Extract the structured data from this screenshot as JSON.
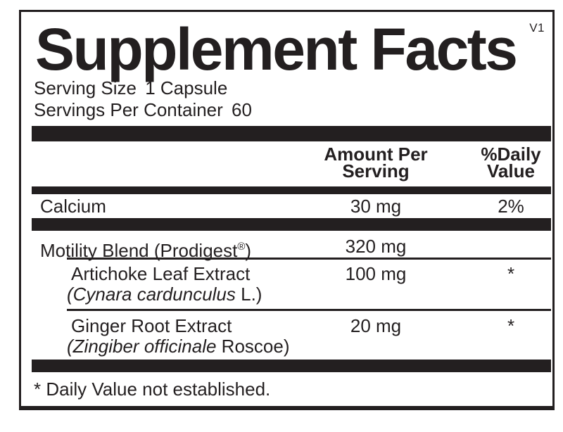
{
  "version": "V1",
  "title": "Supplement Facts",
  "serving_info": {
    "size_label": "Serving Size",
    "size_value": "1 Capsule",
    "container_label": "Servings Per Container",
    "container_value": "60"
  },
  "table": {
    "header": {
      "amount_line1": "Amount Per",
      "amount_line2": "Serving",
      "daily_value_line1": "%Daily",
      "daily_value_line2": "Value"
    },
    "rows": {
      "calcium": {
        "name": "Calcium",
        "amount": "30 mg",
        "daily_value": "2%"
      },
      "motility_blend": {
        "name": "Motility Blend (Prodigest",
        "trademark": "®",
        "name_suffix": ")",
        "amount": "320 mg",
        "daily_value": ""
      },
      "artichoke": {
        "name": "Artichoke Leaf Extract",
        "latin_italic": "(Cynara cardunculus",
        "latin_suffix": " L.)",
        "amount": "100 mg",
        "daily_value": "*"
      },
      "ginger": {
        "name": "Ginger Root Extract",
        "latin_italic": "(Zingiber officinale",
        "latin_suffix": " Roscoe)",
        "amount": "20 mg",
        "daily_value": "*"
      }
    }
  },
  "footnote": "* Daily Value not established.",
  "colors": {
    "ink": "#231f20",
    "background": "#ffffff"
  }
}
